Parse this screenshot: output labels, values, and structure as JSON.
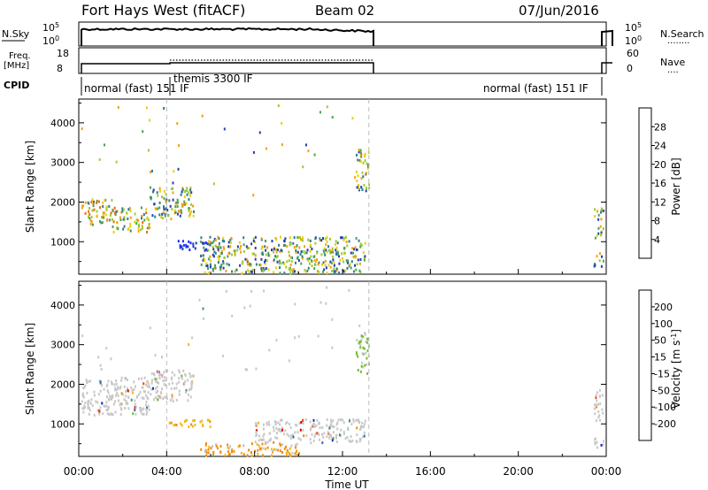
{
  "header": {
    "title": "Fort Hays West (fitACF)",
    "beam": "Beam 02",
    "date": "07/Jun/2016"
  },
  "status_panels": {
    "nsky_label": "N.Sky",
    "nsearch_label": "N.Search",
    "nsearch_key": "........",
    "nsky_ticks": [
      "10^5",
      "10^0"
    ],
    "nsearch_ticks": [
      "10^5",
      "10^0"
    ],
    "freq_label_line1": "Freq.",
    "freq_label_line2": "[MHz]",
    "freq_ticks": [
      "18",
      "8"
    ],
    "nave_label": "Nave",
    "nave_key": "....",
    "nave_ticks": [
      "60",
      "0"
    ],
    "cpid_label": "CPID",
    "cpid_segments": [
      {
        "label": "normal (fast) 151 IF",
        "start": 0.0
      },
      {
        "label": "themis 3300 IF",
        "start": 4.0
      },
      {
        "label": "normal (fast) 151 IF",
        "start": 20.6
      }
    ]
  },
  "colors": {
    "power_scale": [
      "#1a2bff",
      "#2540b0",
      "#2f7f86",
      "#49a35a",
      "#9ccc33",
      "#e6cf10",
      "#f4a010",
      "#f06a10",
      "#e83010",
      "#e00000"
    ],
    "velocity_scale": [
      "#e00000",
      "#f04a10",
      "#f48a10",
      "#f4b818",
      "#c8c8c8",
      "#c8c8c8",
      "#70c030",
      "#3f9a5a",
      "#2f6fa0",
      "#1a2bd0"
    ]
  },
  "chart_data": [
    {
      "type": "heatmap",
      "title": "Power",
      "xlabel": "",
      "ylabel": "Slant Range [km]",
      "xlim": [
        0,
        24
      ],
      "ylim": [
        180,
        4600
      ],
      "yticks": [
        1000,
        2000,
        3000,
        4000
      ],
      "colorbar_label": "Power [dB]",
      "colorbar_range": [
        0,
        32
      ],
      "colorbar_ticks": [
        "4",
        "8",
        "12",
        "16",
        "20",
        "24",
        "28"
      ],
      "dashed_vlines": [
        4.0,
        13.2
      ],
      "echo_regions": [
        {
          "t0": 0.1,
          "t1": 1.5,
          "r0": 1450,
          "r1": 2100,
          "level": "mixed_high"
        },
        {
          "t0": 1.5,
          "t1": 3.2,
          "r0": 1250,
          "r1": 1900,
          "level": "mixed_high"
        },
        {
          "t0": 3.2,
          "t1": 5.2,
          "r0": 1600,
          "r1": 2400,
          "level": "mixed_mid"
        },
        {
          "t0": 4.5,
          "t1": 6.2,
          "r0": 800,
          "r1": 1050,
          "level": "low"
        },
        {
          "t0": 5.5,
          "t1": 13.0,
          "r0": 230,
          "r1": 1150,
          "level": "mixed_mid"
        },
        {
          "t0": 12.6,
          "t1": 13.2,
          "r0": 2300,
          "r1": 3300,
          "level": "mixed_mid"
        },
        {
          "t0": 23.4,
          "t1": 23.85,
          "r0": 1100,
          "r1": 1900,
          "level": "mixed_mid"
        },
        {
          "t0": 23.4,
          "t1": 23.85,
          "r0": 400,
          "r1": 750,
          "level": "mixed_mid"
        }
      ]
    },
    {
      "type": "heatmap",
      "title": "Velocity",
      "xlabel": "Time UT",
      "ylabel": "Slant Range [km]",
      "xlim": [
        0,
        24
      ],
      "ylim": [
        180,
        4600
      ],
      "xticks": [
        "00:00",
        "04:00",
        "08:00",
        "12:00",
        "16:00",
        "20:00",
        "00:00"
      ],
      "yticks": [
        1000,
        2000,
        3000,
        4000
      ],
      "colorbar_label": "Velocity [m s^-1]",
      "colorbar_range": [
        -250,
        250
      ],
      "colorbar_ticks": [
        "200",
        "100",
        "50",
        "15",
        "-15",
        "-50",
        "-100",
        "-200"
      ],
      "dashed_vlines": [
        4.0,
        13.2
      ],
      "echo_regions": [
        {
          "t0": 0.1,
          "t1": 3.2,
          "r0": 1250,
          "r1": 2200,
          "level": "gray"
        },
        {
          "t0": 3.2,
          "t1": 5.2,
          "r0": 1600,
          "r1": 2400,
          "level": "gray"
        },
        {
          "t0": 4.0,
          "t1": 6.0,
          "r0": 950,
          "r1": 1150,
          "level": "amber"
        },
        {
          "t0": 5.5,
          "t1": 10.0,
          "r0": 230,
          "r1": 550,
          "level": "orange"
        },
        {
          "t0": 8.0,
          "t1": 13.0,
          "r0": 550,
          "r1": 1150,
          "level": "gray"
        },
        {
          "t0": 12.6,
          "t1": 13.2,
          "r0": 2300,
          "r1": 3300,
          "level": "green"
        },
        {
          "t0": 23.4,
          "t1": 23.85,
          "r0": 1100,
          "r1": 1900,
          "level": "gray"
        },
        {
          "t0": 23.4,
          "t1": 23.85,
          "r0": 400,
          "r1": 750,
          "level": "gray"
        }
      ]
    }
  ]
}
